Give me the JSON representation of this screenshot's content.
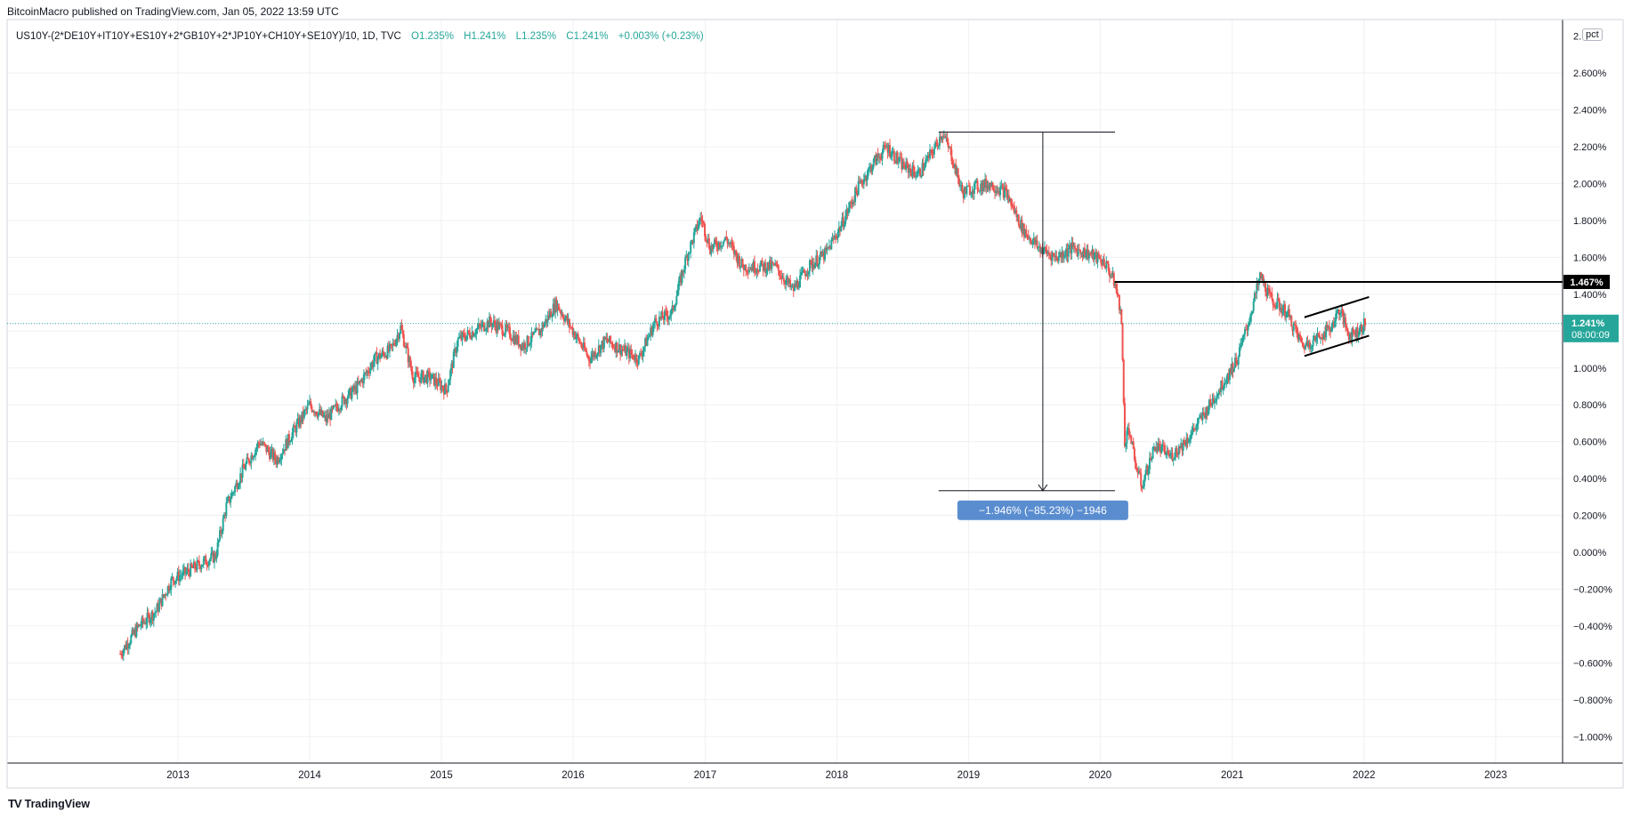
{
  "header": {
    "publisher": "BitcoinMacro published on TradingView.com, Jan 05, 2022 13:59 UTC"
  },
  "legend": {
    "symbol": "US10Y-(2*DE10Y+IT10Y+ES10Y+2*GB10Y+2*JP10Y+CH10Y+SE10Y)/10, 1D, TVC",
    "open": "O1.235%",
    "high": "H1.241%",
    "low": "L1.235%",
    "close": "C1.241%",
    "change": "+0.003% (+0.23%)"
  },
  "scale_button": "pct",
  "brand": {
    "logo": "TV",
    "name": "TradingView"
  },
  "colors": {
    "up": "#26a69a",
    "down": "#ef5350",
    "grid": "#eef0f3",
    "axis_text": "#131722",
    "measure_box": "#5a8dd0",
    "last_price_box": "#26a69a"
  },
  "chart_data": {
    "type": "line",
    "title": "",
    "xlabel": "",
    "ylabel": "",
    "xlim": [
      "2012-01-01",
      "2023-12-31"
    ],
    "ylim": [
      -1.15,
      2.85
    ],
    "y_unit": "%",
    "grid": true,
    "x_ticks": [
      "2013",
      "2014",
      "2015",
      "2016",
      "2017",
      "2018",
      "2019",
      "2020",
      "2021",
      "2022",
      "2023"
    ],
    "y_ticks": [
      "2.600%",
      "2.400%",
      "2.200%",
      "2.000%",
      "1.800%",
      "1.600%",
      "1.400%",
      "1.200%",
      "1.000%",
      "0.800%",
      "0.600%",
      "0.400%",
      "0.200%",
      "0.000%",
      "−0.200%",
      "−0.400%",
      "−0.600%",
      "−0.800%",
      "−1.000%"
    ],
    "y_tick_cut": "2.",
    "series": [
      {
        "values": [
          [
            "2012-07-25",
            -0.55
          ],
          [
            "2012-09-15",
            -0.4
          ],
          [
            "2012-11-01",
            -0.32
          ],
          [
            "2012-12-15",
            -0.15
          ],
          [
            "2013-02-01",
            -0.1
          ],
          [
            "2013-03-15",
            -0.05
          ],
          [
            "2013-04-15",
            -0.02
          ],
          [
            "2013-05-15",
            0.25
          ],
          [
            "2013-07-01",
            0.45
          ],
          [
            "2013-08-15",
            0.6
          ],
          [
            "2013-10-01",
            0.5
          ],
          [
            "2013-11-15",
            0.65
          ],
          [
            "2014-01-01",
            0.8
          ],
          [
            "2014-02-15",
            0.72
          ],
          [
            "2014-04-01",
            0.82
          ],
          [
            "2014-05-15",
            0.9
          ],
          [
            "2014-07-01",
            1.05
          ],
          [
            "2014-08-15",
            1.1
          ],
          [
            "2014-09-10",
            1.22
          ],
          [
            "2014-10-15",
            0.95
          ],
          [
            "2014-12-01",
            0.95
          ],
          [
            "2015-01-15",
            0.88
          ],
          [
            "2015-02-15",
            1.15
          ],
          [
            "2015-04-01",
            1.2
          ],
          [
            "2015-05-15",
            1.25
          ],
          [
            "2015-07-01",
            1.2
          ],
          [
            "2015-08-15",
            1.12
          ],
          [
            "2015-10-01",
            1.2
          ],
          [
            "2015-11-15",
            1.35
          ],
          [
            "2016-01-01",
            1.2
          ],
          [
            "2016-02-15",
            1.05
          ],
          [
            "2016-04-01",
            1.15
          ],
          [
            "2016-05-15",
            1.1
          ],
          [
            "2016-07-01",
            1.05
          ],
          [
            "2016-08-15",
            1.25
          ],
          [
            "2016-10-01",
            1.3
          ],
          [
            "2016-11-10",
            1.6
          ],
          [
            "2016-12-20",
            1.82
          ],
          [
            "2017-01-15",
            1.65
          ],
          [
            "2017-03-01",
            1.7
          ],
          [
            "2017-04-15",
            1.55
          ],
          [
            "2017-06-01",
            1.55
          ],
          [
            "2017-07-15",
            1.55
          ],
          [
            "2017-09-01",
            1.42
          ],
          [
            "2017-10-15",
            1.55
          ],
          [
            "2017-12-01",
            1.62
          ],
          [
            "2018-01-15",
            1.78
          ],
          [
            "2018-03-01",
            1.98
          ],
          [
            "2018-04-15",
            2.12
          ],
          [
            "2018-05-20",
            2.2
          ],
          [
            "2018-07-01",
            2.1
          ],
          [
            "2018-08-15",
            2.05
          ],
          [
            "2018-10-01",
            2.2
          ],
          [
            "2018-10-20",
            2.28
          ],
          [
            "2018-11-15",
            2.15
          ],
          [
            "2018-12-15",
            1.95
          ],
          [
            "2019-01-15",
            1.98
          ],
          [
            "2019-03-01",
            2.0
          ],
          [
            "2019-04-15",
            1.95
          ],
          [
            "2019-06-01",
            1.75
          ],
          [
            "2019-07-15",
            1.65
          ],
          [
            "2019-09-01",
            1.6
          ],
          [
            "2019-10-15",
            1.65
          ],
          [
            "2019-12-01",
            1.62
          ],
          [
            "2020-01-15",
            1.57
          ],
          [
            "2020-02-10",
            1.46
          ],
          [
            "2020-02-28",
            1.3
          ],
          [
            "2020-03-09",
            0.6
          ],
          [
            "2020-03-20",
            0.68
          ],
          [
            "2020-04-05",
            0.5
          ],
          [
            "2020-04-25",
            0.36
          ],
          [
            "2020-06-01",
            0.58
          ],
          [
            "2020-07-15",
            0.52
          ],
          [
            "2020-09-01",
            0.62
          ],
          [
            "2020-10-15",
            0.75
          ],
          [
            "2020-12-01",
            0.9
          ],
          [
            "2021-01-15",
            1.05
          ],
          [
            "2021-02-15",
            1.25
          ],
          [
            "2021-03-20",
            1.5
          ],
          [
            "2021-04-15",
            1.38
          ],
          [
            "2021-06-01",
            1.3
          ],
          [
            "2021-07-15",
            1.12
          ],
          [
            "2021-08-15",
            1.15
          ],
          [
            "2021-10-01",
            1.22
          ],
          [
            "2021-10-25",
            1.32
          ],
          [
            "2021-11-20",
            1.18
          ],
          [
            "2021-12-15",
            1.2
          ],
          [
            "2022-01-04",
            1.241
          ]
        ]
      }
    ],
    "annotations": {
      "resistance_level": {
        "value": 1.467,
        "label": "1.467%",
        "from": "2020-02-10"
      },
      "last_price": {
        "value": 1.241,
        "label": "1.241%",
        "countdown": "08:00:09"
      },
      "measure": {
        "from": {
          "x": "2018-10-20",
          "y": 2.28
        },
        "to": {
          "x": "2020-02-01",
          "y": 0.334
        },
        "label": "−1.946% (−85.23%) −1946"
      },
      "channel": {
        "upper": [
          [
            "2021-07-20",
            1.275
          ],
          [
            "2022-01-15",
            1.385
          ]
        ],
        "lower": [
          [
            "2021-07-20",
            1.065
          ],
          [
            "2022-01-15",
            1.175
          ]
        ]
      }
    }
  }
}
